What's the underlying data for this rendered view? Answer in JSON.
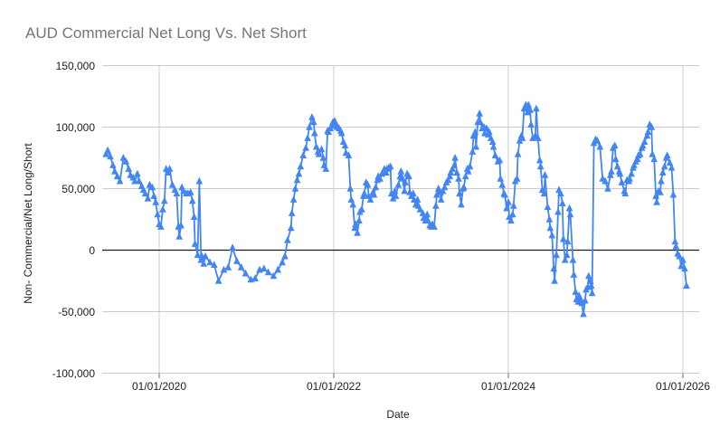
{
  "page": {
    "background": "#ffffff"
  },
  "chart": {
    "title": "AUD Commercial Net Long Vs. Net Short",
    "title_color": "#757575",
    "series_color": "#4285f4",
    "gridline_color": "#cccccc",
    "zero_line_color": "#1a1a1a",
    "tick_mark_color": "#666666",
    "label_color": "#202020",
    "x_axis": {
      "title": "Date",
      "ticks": [
        {
          "label": "01/01/2020",
          "year": 2020
        },
        {
          "label": "01/01/2022",
          "year": 2022
        },
        {
          "label": "01/01/2024",
          "year": 2024
        },
        {
          "label": "01/01/2026",
          "year": 2026
        }
      ]
    },
    "y_axis": {
      "title": "Non- Commercial/Net Long/Short",
      "ticks": [
        {
          "label": "150,000",
          "value": 150000
        },
        {
          "label": "100,000",
          "value": 100000
        },
        {
          "label": "50,000",
          "value": 50000
        },
        {
          "label": "0",
          "value": 0
        },
        {
          "label": "-50,000",
          "value": -50000
        },
        {
          "label": "-100,000",
          "value": -100000
        }
      ]
    }
  },
  "chart_data": {
    "type": "line",
    "marker": "triangle-up",
    "title": "AUD Commercial Net Long Vs. Net Short",
    "xlabel": "Date",
    "ylabel": "Non- Commercial/Net Long/Short",
    "x_unit": "decimal_year",
    "xlim": [
      2019.35,
      2026.19
    ],
    "ylim": [
      -100000,
      150000
    ],
    "grid": true,
    "legend": "none",
    "points": [
      [
        2019.39,
        78000
      ],
      [
        2019.41,
        81000
      ],
      [
        2019.44,
        76000
      ],
      [
        2019.47,
        69000
      ],
      [
        2019.49,
        64000
      ],
      [
        2019.52,
        60000
      ],
      [
        2019.55,
        56000
      ],
      [
        2019.59,
        75000
      ],
      [
        2019.62,
        72000
      ],
      [
        2019.65,
        66000
      ],
      [
        2019.67,
        61000
      ],
      [
        2019.7,
        59000
      ],
      [
        2019.72,
        56000
      ],
      [
        2019.75,
        62000
      ],
      [
        2019.77,
        56000
      ],
      [
        2019.8,
        52000
      ],
      [
        2019.82,
        49000
      ],
      [
        2019.84,
        46000
      ],
      [
        2019.87,
        42000
      ],
      [
        2019.89,
        53000
      ],
      [
        2019.92,
        51000
      ],
      [
        2019.94,
        44000
      ],
      [
        2019.96,
        39000
      ],
      [
        2019.98,
        29000
      ],
      [
        2020.0,
        21000
      ],
      [
        2020.02,
        19000
      ],
      [
        2020.04,
        33000
      ],
      [
        2020.06,
        40000
      ],
      [
        2020.08,
        66000
      ],
      [
        2020.1,
        63000
      ],
      [
        2020.12,
        66000
      ],
      [
        2020.15,
        53000
      ],
      [
        2020.18,
        49000
      ],
      [
        2020.2,
        46000
      ],
      [
        2020.22,
        19000
      ],
      [
        2020.23,
        11000
      ],
      [
        2020.25,
        20000
      ],
      [
        2020.26,
        51000
      ],
      [
        2020.28,
        48000
      ],
      [
        2020.31,
        46000
      ],
      [
        2020.33,
        46000
      ],
      [
        2020.36,
        47000
      ],
      [
        2020.38,
        40000
      ],
      [
        2020.4,
        27000
      ],
      [
        2020.41,
        5000
      ],
      [
        2020.44,
        -4000
      ],
      [
        2020.46,
        56000
      ],
      [
        2020.48,
        -8000
      ],
      [
        2020.49,
        -5000
      ],
      [
        2020.51,
        -11000
      ],
      [
        2020.53,
        -5000
      ],
      [
        2020.58,
        -10000
      ],
      [
        2020.63,
        -12000
      ],
      [
        2020.68,
        -25000
      ],
      [
        2020.74,
        -16000
      ],
      [
        2020.79,
        -14000
      ],
      [
        2020.84,
        2000
      ],
      [
        2020.89,
        -9000
      ],
      [
        2020.94,
        -14000
      ],
      [
        2020.99,
        -19000
      ],
      [
        2021.05,
        -24000
      ],
      [
        2021.1,
        -23000
      ],
      [
        2021.15,
        -16000
      ],
      [
        2021.2,
        -15000
      ],
      [
        2021.25,
        -18000
      ],
      [
        2021.31,
        -21000
      ],
      [
        2021.36,
        -16000
      ],
      [
        2021.41,
        -10000
      ],
      [
        2021.44,
        -5000
      ],
      [
        2021.47,
        8000
      ],
      [
        2021.51,
        18000
      ],
      [
        2021.52,
        30000
      ],
      [
        2021.54,
        41000
      ],
      [
        2021.56,
        50000
      ],
      [
        2021.58,
        57000
      ],
      [
        2021.6,
        62000
      ],
      [
        2021.62,
        68000
      ],
      [
        2021.65,
        77000
      ],
      [
        2021.68,
        83000
      ],
      [
        2021.7,
        91000
      ],
      [
        2021.72,
        100000
      ],
      [
        2021.75,
        108000
      ],
      [
        2021.77,
        104000
      ],
      [
        2021.78,
        95000
      ],
      [
        2021.8,
        84000
      ],
      [
        2021.82,
        80000
      ],
      [
        2021.83,
        78000
      ],
      [
        2021.86,
        82000
      ],
      [
        2021.88,
        75000
      ],
      [
        2021.89,
        69000
      ],
      [
        2021.91,
        66000
      ],
      [
        2021.93,
        97000
      ],
      [
        2021.94,
        96000
      ],
      [
        2021.96,
        99000
      ],
      [
        2021.98,
        101000
      ],
      [
        2021.99,
        104000
      ],
      [
        2022.01,
        105000
      ],
      [
        2022.03,
        102000
      ],
      [
        2022.04,
        100000
      ],
      [
        2022.06,
        99000
      ],
      [
        2022.08,
        97000
      ],
      [
        2022.09,
        95000
      ],
      [
        2022.11,
        88000
      ],
      [
        2022.13,
        85000
      ],
      [
        2022.14,
        79000
      ],
      [
        2022.17,
        77000
      ],
      [
        2022.19,
        50000
      ],
      [
        2022.2,
        41000
      ],
      [
        2022.22,
        37000
      ],
      [
        2022.24,
        18000
      ],
      [
        2022.25,
        21000
      ],
      [
        2022.27,
        14000
      ],
      [
        2022.29,
        24000
      ],
      [
        2022.3,
        31000
      ],
      [
        2022.32,
        33000
      ],
      [
        2022.34,
        44000
      ],
      [
        2022.35,
        46000
      ],
      [
        2022.37,
        55000
      ],
      [
        2022.39,
        53000
      ],
      [
        2022.4,
        44000
      ],
      [
        2022.42,
        41000
      ],
      [
        2022.45,
        47000
      ],
      [
        2022.46,
        45000
      ],
      [
        2022.48,
        51000
      ],
      [
        2022.5,
        57000
      ],
      [
        2022.51,
        60000
      ],
      [
        2022.53,
        58000
      ],
      [
        2022.55,
        62000
      ],
      [
        2022.56,
        63000
      ],
      [
        2022.58,
        66000
      ],
      [
        2022.6,
        63000
      ],
      [
        2022.61,
        66000
      ],
      [
        2022.63,
        67000
      ],
      [
        2022.65,
        68000
      ],
      [
        2022.66,
        46000
      ],
      [
        2022.68,
        42000
      ],
      [
        2022.7,
        48000
      ],
      [
        2022.71,
        44000
      ],
      [
        2022.74,
        53000
      ],
      [
        2022.76,
        60000
      ],
      [
        2022.77,
        64000
      ],
      [
        2022.79,
        58000
      ],
      [
        2022.81,
        48000
      ],
      [
        2022.82,
        55000
      ],
      [
        2022.84,
        62000
      ],
      [
        2022.86,
        60000
      ],
      [
        2022.87,
        47000
      ],
      [
        2022.89,
        44000
      ],
      [
        2022.91,
        46000
      ],
      [
        2022.92,
        41000
      ],
      [
        2022.94,
        37000
      ],
      [
        2022.96,
        41000
      ],
      [
        2022.97,
        36000
      ],
      [
        2022.99,
        33000
      ],
      [
        2023.02,
        30000
      ],
      [
        2023.03,
        26000
      ],
      [
        2023.05,
        24000
      ],
      [
        2023.07,
        29000
      ],
      [
        2023.08,
        24000
      ],
      [
        2023.1,
        20000
      ],
      [
        2023.12,
        19000
      ],
      [
        2023.13,
        21000
      ],
      [
        2023.15,
        19000
      ],
      [
        2023.17,
        36000
      ],
      [
        2023.18,
        45000
      ],
      [
        2023.2,
        50000
      ],
      [
        2023.22,
        47000
      ],
      [
        2023.23,
        41000
      ],
      [
        2023.25,
        48000
      ],
      [
        2023.27,
        51000
      ],
      [
        2023.29,
        55000
      ],
      [
        2023.31,
        57000
      ],
      [
        2023.33,
        60000
      ],
      [
        2023.34,
        63000
      ],
      [
        2023.36,
        66000
      ],
      [
        2023.38,
        69000
      ],
      [
        2023.39,
        75000
      ],
      [
        2023.41,
        63000
      ],
      [
        2023.43,
        58000
      ],
      [
        2023.44,
        46000
      ],
      [
        2023.46,
        37000
      ],
      [
        2023.48,
        50000
      ],
      [
        2023.49,
        51000
      ],
      [
        2023.51,
        60000
      ],
      [
        2023.53,
        66000
      ],
      [
        2023.54,
        64000
      ],
      [
        2023.56,
        68000
      ],
      [
        2023.59,
        80000
      ],
      [
        2023.6,
        93000
      ],
      [
        2023.62,
        96000
      ],
      [
        2023.63,
        84000
      ],
      [
        2023.65,
        104000
      ],
      [
        2023.67,
        111000
      ],
      [
        2023.68,
        104000
      ],
      [
        2023.7,
        99000
      ],
      [
        2023.72,
        100000
      ],
      [
        2023.73,
        95000
      ],
      [
        2023.75,
        99000
      ],
      [
        2023.77,
        94000
      ],
      [
        2023.78,
        96000
      ],
      [
        2023.8,
        91000
      ],
      [
        2023.82,
        88000
      ],
      [
        2023.83,
        84000
      ],
      [
        2023.85,
        77000
      ],
      [
        2023.88,
        72000
      ],
      [
        2023.9,
        73000
      ],
      [
        2023.91,
        58000
      ],
      [
        2023.93,
        53000
      ],
      [
        2023.95,
        46000
      ],
      [
        2023.96,
        45000
      ],
      [
        2023.98,
        34000
      ],
      [
        2024.0,
        39000
      ],
      [
        2024.01,
        27000
      ],
      [
        2024.03,
        24000
      ],
      [
        2024.05,
        29000
      ],
      [
        2024.06,
        36000
      ],
      [
        2024.08,
        56000
      ],
      [
        2024.1,
        58000
      ],
      [
        2024.11,
        78000
      ],
      [
        2024.13,
        89000
      ],
      [
        2024.15,
        93000
      ],
      [
        2024.16,
        91000
      ],
      [
        2024.18,
        115000
      ],
      [
        2024.2,
        118000
      ],
      [
        2024.22,
        112000
      ],
      [
        2024.23,
        118000
      ],
      [
        2024.25,
        114000
      ],
      [
        2024.26,
        102000
      ],
      [
        2024.28,
        91000
      ],
      [
        2024.31,
        93000
      ],
      [
        2024.32,
        115000
      ],
      [
        2024.34,
        91000
      ],
      [
        2024.36,
        73000
      ],
      [
        2024.37,
        68000
      ],
      [
        2024.39,
        49000
      ],
      [
        2024.41,
        46000
      ],
      [
        2024.42,
        61000
      ],
      [
        2024.45,
        35000
      ],
      [
        2024.47,
        25000
      ],
      [
        2024.48,
        18000
      ],
      [
        2024.5,
        12000
      ],
      [
        2024.52,
        -15000
      ],
      [
        2024.53,
        -25000
      ],
      [
        2024.55,
        -4000
      ],
      [
        2024.57,
        31000
      ],
      [
        2024.58,
        49000
      ],
      [
        2024.6,
        46000
      ],
      [
        2024.62,
        38000
      ],
      [
        2024.63,
        9000
      ],
      [
        2024.65,
        -8000
      ],
      [
        2024.67,
        -4000
      ],
      [
        2024.68,
        7000
      ],
      [
        2024.7,
        34000
      ],
      [
        2024.71,
        29000
      ],
      [
        2024.74,
        -8000
      ],
      [
        2024.75,
        -20000
      ],
      [
        2024.77,
        -34000
      ],
      [
        2024.78,
        -40000
      ],
      [
        2024.8,
        -42000
      ],
      [
        2024.81,
        -37000
      ],
      [
        2024.83,
        -40000
      ],
      [
        2024.84,
        -43000
      ],
      [
        2024.86,
        -52000
      ],
      [
        2024.88,
        -41000
      ],
      [
        2024.89,
        -32000
      ],
      [
        2024.91,
        -30000
      ],
      [
        2024.92,
        -21000
      ],
      [
        2024.94,
        -25000
      ],
      [
        2024.95,
        -29000
      ],
      [
        2024.96,
        -35000
      ],
      [
        2024.98,
        87000
      ],
      [
        2025.0,
        90000
      ],
      [
        2025.02,
        89000
      ],
      [
        2025.05,
        84000
      ],
      [
        2025.08,
        58000
      ],
      [
        2025.11,
        56000
      ],
      [
        2025.14,
        50000
      ],
      [
        2025.17,
        61000
      ],
      [
        2025.18,
        64000
      ],
      [
        2025.2,
        83000
      ],
      [
        2025.22,
        85000
      ],
      [
        2025.23,
        74000
      ],
      [
        2025.25,
        68000
      ],
      [
        2025.27,
        64000
      ],
      [
        2025.28,
        62000
      ],
      [
        2025.3,
        55000
      ],
      [
        2025.33,
        48000
      ],
      [
        2025.34,
        46000
      ],
      [
        2025.36,
        57000
      ],
      [
        2025.38,
        56000
      ],
      [
        2025.39,
        58000
      ],
      [
        2025.41,
        62000
      ],
      [
        2025.43,
        67000
      ],
      [
        2025.44,
        69000
      ],
      [
        2025.46,
        72000
      ],
      [
        2025.48,
        74000
      ],
      [
        2025.49,
        77000
      ],
      [
        2025.51,
        78000
      ],
      [
        2025.53,
        83000
      ],
      [
        2025.54,
        85000
      ],
      [
        2025.56,
        88000
      ],
      [
        2025.59,
        93000
      ],
      [
        2025.6,
        96000
      ],
      [
        2025.62,
        102000
      ],
      [
        2025.64,
        100000
      ],
      [
        2025.65,
        78000
      ],
      [
        2025.67,
        74000
      ],
      [
        2025.69,
        44000
      ],
      [
        2025.7,
        39000
      ],
      [
        2025.72,
        48000
      ],
      [
        2025.74,
        47000
      ],
      [
        2025.75,
        56000
      ],
      [
        2025.77,
        63000
      ],
      [
        2025.79,
        68000
      ],
      [
        2025.81,
        75000
      ],
      [
        2025.82,
        77000
      ],
      [
        2025.85,
        71000
      ],
      [
        2025.87,
        67000
      ],
      [
        2025.89,
        45000
      ],
      [
        2025.91,
        7000
      ],
      [
        2025.92,
        3000
      ],
      [
        2025.94,
        -3000
      ],
      [
        2025.96,
        -5000
      ],
      [
        2025.98,
        -13000
      ],
      [
        2026.0,
        -8000
      ],
      [
        2026.02,
        -15000
      ],
      [
        2026.04,
        -29000
      ]
    ]
  }
}
